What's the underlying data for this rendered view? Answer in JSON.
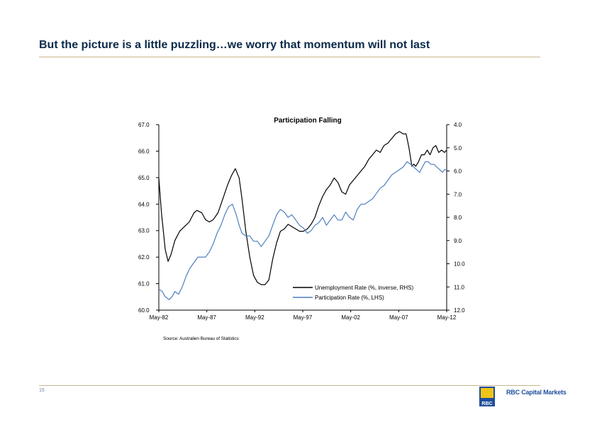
{
  "slide": {
    "title": "But the picture is a little puzzling…we worry that momentum will not last",
    "page_number": "15",
    "source": "Source: Australien Bureau of Statistics",
    "brand": "RBC Capital Markets"
  },
  "colors": {
    "title": "#0b2a4a",
    "rule": "#c8b68a",
    "unemployment_line": "#000000",
    "participation_line": "#4f7fbf"
  },
  "chart_data": {
    "type": "line",
    "title": "Participation Falling",
    "x_ticks": [
      "May-82",
      "May-87",
      "May-92",
      "May-97",
      "May-02",
      "May-07",
      "May-12"
    ],
    "x_range": [
      1982.33,
      2012.33
    ],
    "left_axis": {
      "ticks": [
        "67.0",
        "66.0",
        "65.0",
        "64.0",
        "63.0",
        "62.0",
        "61.0",
        "60.0"
      ],
      "range": [
        60,
        67
      ]
    },
    "right_axis": {
      "ticks": [
        "4.0",
        "5.0",
        "6.0",
        "7.0",
        "8.0",
        "9.0",
        "10.0",
        "11.0",
        "12.0"
      ],
      "range": [
        4,
        12
      ],
      "inverted": true
    },
    "grid": false,
    "legend_position": "bottom-right",
    "series": [
      {
        "name": "Unemployment Rate (%, inverse, RHS)",
        "axis": "right",
        "x": [
          1982.33,
          1982.6,
          1983.0,
          1983.3,
          1983.6,
          1984.0,
          1984.5,
          1985.0,
          1985.5,
          1986.0,
          1986.3,
          1986.8,
          1987.2,
          1987.6,
          1988.0,
          1988.5,
          1989.0,
          1989.5,
          1989.9,
          1990.3,
          1990.7,
          1991.0,
          1991.4,
          1991.8,
          1992.2,
          1992.6,
          1993.0,
          1993.4,
          1993.8,
          1994.2,
          1994.6,
          1995.0,
          1995.4,
          1995.8,
          1996.2,
          1996.6,
          1997.0,
          1997.4,
          1997.8,
          1998.2,
          1998.6,
          1999.0,
          1999.4,
          1999.8,
          2000.2,
          2000.6,
          2001.0,
          2001.4,
          2001.8,
          2002.2,
          2002.6,
          2003.0,
          2003.4,
          2003.8,
          2004.2,
          2004.6,
          2005.0,
          2005.4,
          2005.8,
          2006.2,
          2006.6,
          2007.0,
          2007.4,
          2007.8,
          2008.1,
          2008.4,
          2008.7,
          2008.9,
          2009.1,
          2009.4,
          2009.7,
          2010.0,
          2010.3,
          2010.6,
          2010.9,
          2011.2,
          2011.5,
          2011.8,
          2012.1,
          2012.33
        ],
        "y": [
          6.3,
          7.8,
          9.4,
          9.9,
          9.6,
          9.0,
          8.6,
          8.4,
          8.2,
          7.8,
          7.7,
          7.8,
          8.1,
          8.2,
          8.1,
          7.8,
          7.2,
          6.6,
          6.2,
          5.9,
          6.3,
          7.2,
          8.6,
          9.7,
          10.5,
          10.8,
          10.9,
          10.9,
          10.7,
          9.8,
          9.1,
          8.6,
          8.5,
          8.3,
          8.4,
          8.5,
          8.6,
          8.6,
          8.5,
          8.3,
          8.0,
          7.5,
          7.1,
          6.8,
          6.6,
          6.3,
          6.5,
          6.9,
          7.0,
          6.6,
          6.4,
          6.2,
          6.0,
          5.8,
          5.5,
          5.3,
          5.1,
          5.2,
          4.9,
          4.8,
          4.6,
          4.4,
          4.3,
          4.4,
          4.4,
          5.0,
          5.8,
          5.7,
          5.8,
          5.6,
          5.3,
          5.3,
          5.1,
          5.3,
          5.0,
          4.9,
          5.2,
          5.1,
          5.2,
          5.1
        ]
      },
      {
        "name": "Participation Rate (%, LHS)",
        "axis": "left",
        "x": [
          1982.33,
          1982.7,
          1983.0,
          1983.4,
          1983.7,
          1984.0,
          1984.4,
          1984.8,
          1985.2,
          1985.6,
          1986.0,
          1986.4,
          1986.8,
          1987.2,
          1987.6,
          1988.0,
          1988.4,
          1988.8,
          1989.2,
          1989.6,
          1990.0,
          1990.4,
          1990.7,
          1991.0,
          1991.4,
          1991.8,
          1992.2,
          1992.6,
          1993.0,
          1993.4,
          1993.8,
          1994.2,
          1994.6,
          1995.0,
          1995.4,
          1995.8,
          1996.2,
          1996.6,
          1997.0,
          1997.4,
          1997.8,
          1998.2,
          1998.6,
          1999.0,
          1999.4,
          1999.8,
          2000.2,
          2000.6,
          2001.0,
          2001.4,
          2001.8,
          2002.2,
          2002.6,
          2003.0,
          2003.4,
          2003.8,
          2004.2,
          2004.6,
          2005.0,
          2005.4,
          2005.8,
          2006.2,
          2006.6,
          2007.0,
          2007.4,
          2007.8,
          2008.2,
          2008.6,
          2008.9,
          2009.2,
          2009.5,
          2009.8,
          2010.1,
          2010.4,
          2010.7,
          2011.0,
          2011.3,
          2011.6,
          2011.9,
          2012.1,
          2012.33
        ],
        "y": [
          60.8,
          60.7,
          60.5,
          60.4,
          60.5,
          60.7,
          60.6,
          60.9,
          61.3,
          61.6,
          61.8,
          62.0,
          62.0,
          62.0,
          62.2,
          62.5,
          62.9,
          63.2,
          63.6,
          63.9,
          64.0,
          63.6,
          63.2,
          62.9,
          62.8,
          62.8,
          62.6,
          62.6,
          62.4,
          62.6,
          62.8,
          63.2,
          63.6,
          63.8,
          63.7,
          63.5,
          63.6,
          63.4,
          63.2,
          63.1,
          62.9,
          63.0,
          63.2,
          63.3,
          63.5,
          63.2,
          63.4,
          63.6,
          63.4,
          63.4,
          63.7,
          63.5,
          63.4,
          63.8,
          64.0,
          64.0,
          64.1,
          64.2,
          64.4,
          64.6,
          64.7,
          64.9,
          65.1,
          65.2,
          65.3,
          65.4,
          65.6,
          65.5,
          65.4,
          65.3,
          65.2,
          65.4,
          65.6,
          65.6,
          65.5,
          65.5,
          65.4,
          65.3,
          65.2,
          65.3,
          65.3
        ]
      }
    ]
  }
}
